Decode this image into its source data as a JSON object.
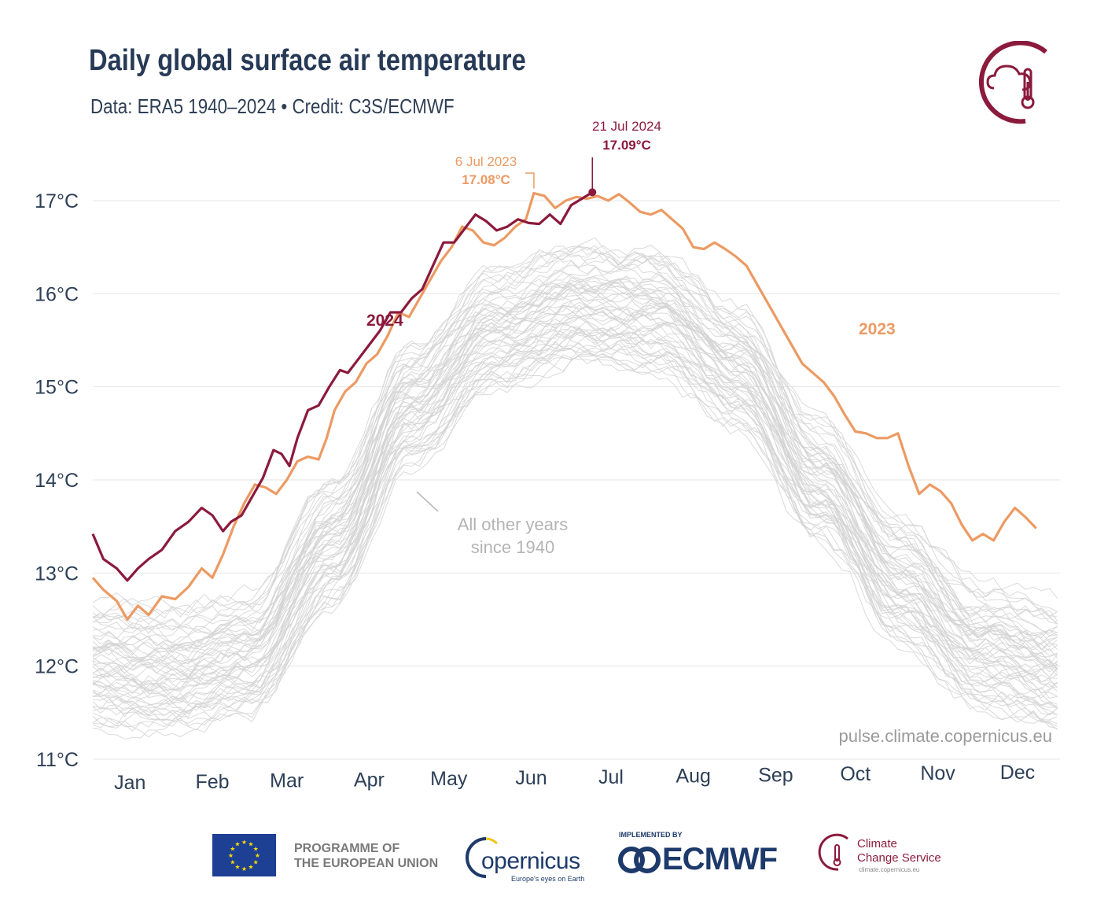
{
  "header": {
    "title": "Daily global surface air temperature",
    "subtitle": "Data: ERA5 1940–2024 • Credit: C3S/ECMWF"
  },
  "colors": {
    "y2024": "#8b1a3d",
    "y2023": "#ec9a63",
    "other_years": "#d3d3d3",
    "grid": "#e6e6e6",
    "text": "#263a56"
  },
  "chart_data": {
    "type": "line",
    "title": "Daily global surface air temperature",
    "ylim": [
      11,
      17
    ],
    "y_ticks": [
      "11°C",
      "12°C",
      "13°C",
      "14°C",
      "15°C",
      "16°C",
      "17°C"
    ],
    "x_ticks": [
      "Jan",
      "Feb",
      "Mar",
      "Apr",
      "May",
      "Jun",
      "Jul",
      "Aug",
      "Sep",
      "Oct",
      "Nov",
      "Dec"
    ],
    "x_unit": "day of year",
    "grid": true,
    "series": [
      {
        "name": "2024",
        "points": [
          [
            1,
            13.42
          ],
          [
            5,
            13.15
          ],
          [
            10,
            13.05
          ],
          [
            14,
            12.92
          ],
          [
            18,
            13.05
          ],
          [
            22,
            13.15
          ],
          [
            27,
            13.25
          ],
          [
            32,
            13.45
          ],
          [
            37,
            13.55
          ],
          [
            42,
            13.7
          ],
          [
            46,
            13.62
          ],
          [
            50,
            13.45
          ],
          [
            53,
            13.55
          ],
          [
            57,
            13.62
          ],
          [
            61,
            13.82
          ],
          [
            65,
            14.02
          ],
          [
            69,
            14.32
          ],
          [
            72,
            14.28
          ],
          [
            75,
            14.15
          ],
          [
            78,
            14.45
          ],
          [
            82,
            14.75
          ],
          [
            86,
            14.8
          ],
          [
            90,
            15.0
          ],
          [
            94,
            15.18
          ],
          [
            97,
            15.15
          ],
          [
            101,
            15.3
          ],
          [
            105,
            15.45
          ],
          [
            109,
            15.6
          ],
          [
            113,
            15.8
          ],
          [
            117,
            15.8
          ],
          [
            121,
            15.95
          ],
          [
            125,
            16.05
          ],
          [
            129,
            16.3
          ],
          [
            133,
            16.55
          ],
          [
            137,
            16.55
          ],
          [
            141,
            16.7
          ],
          [
            145,
            16.85
          ],
          [
            149,
            16.78
          ],
          [
            153,
            16.68
          ],
          [
            157,
            16.72
          ],
          [
            161,
            16.8
          ],
          [
            165,
            16.76
          ],
          [
            169,
            16.75
          ],
          [
            173,
            16.85
          ],
          [
            177,
            16.75
          ],
          [
            181,
            16.95
          ],
          [
            185,
            17.02
          ],
          [
            189,
            17.09
          ]
        ]
      },
      {
        "name": "2023",
        "points": [
          [
            1,
            12.95
          ],
          [
            5,
            12.82
          ],
          [
            10,
            12.7
          ],
          [
            14,
            12.5
          ],
          [
            18,
            12.65
          ],
          [
            22,
            12.55
          ],
          [
            27,
            12.75
          ],
          [
            32,
            12.72
          ],
          [
            37,
            12.85
          ],
          [
            42,
            13.05
          ],
          [
            46,
            12.95
          ],
          [
            50,
            13.2
          ],
          [
            54,
            13.5
          ],
          [
            58,
            13.75
          ],
          [
            62,
            13.95
          ],
          [
            66,
            13.92
          ],
          [
            70,
            13.85
          ],
          [
            74,
            14.0
          ],
          [
            78,
            14.2
          ],
          [
            82,
            14.25
          ],
          [
            86,
            14.22
          ],
          [
            89,
            14.45
          ],
          [
            92,
            14.75
          ],
          [
            96,
            14.95
          ],
          [
            100,
            15.05
          ],
          [
            104,
            15.25
          ],
          [
            108,
            15.35
          ],
          [
            112,
            15.55
          ],
          [
            116,
            15.8
          ],
          [
            120,
            15.75
          ],
          [
            124,
            15.95
          ],
          [
            128,
            16.15
          ],
          [
            132,
            16.35
          ],
          [
            136,
            16.5
          ],
          [
            140,
            16.72
          ],
          [
            144,
            16.68
          ],
          [
            148,
            16.55
          ],
          [
            152,
            16.52
          ],
          [
            156,
            16.6
          ],
          [
            160,
            16.72
          ],
          [
            164,
            16.8
          ],
          [
            167,
            17.08
          ],
          [
            171,
            17.05
          ],
          [
            175,
            16.92
          ],
          [
            179,
            17.0
          ],
          [
            183,
            17.04
          ],
          [
            187,
            17.02
          ],
          [
            191,
            17.05
          ],
          [
            195,
            17.0
          ],
          [
            199,
            17.07
          ],
          [
            203,
            16.98
          ],
          [
            207,
            16.88
          ],
          [
            211,
            16.85
          ],
          [
            215,
            16.9
          ],
          [
            219,
            16.8
          ],
          [
            223,
            16.7
          ],
          [
            227,
            16.5
          ],
          [
            231,
            16.48
          ],
          [
            235,
            16.55
          ],
          [
            239,
            16.48
          ],
          [
            243,
            16.4
          ],
          [
            247,
            16.3
          ],
          [
            252,
            16.05
          ],
          [
            256,
            15.85
          ],
          [
            260,
            15.65
          ],
          [
            264,
            15.45
          ],
          [
            268,
            15.25
          ],
          [
            272,
            15.15
          ],
          [
            276,
            15.05
          ],
          [
            280,
            14.9
          ],
          [
            284,
            14.7
          ],
          [
            288,
            14.52
          ],
          [
            292,
            14.5
          ],
          [
            296,
            14.45
          ],
          [
            300,
            14.45
          ],
          [
            304,
            14.5
          ],
          [
            308,
            14.15
          ],
          [
            312,
            13.85
          ],
          [
            316,
            13.95
          ],
          [
            320,
            13.88
          ],
          [
            324,
            13.75
          ],
          [
            328,
            13.52
          ],
          [
            332,
            13.35
          ],
          [
            336,
            13.42
          ],
          [
            340,
            13.35
          ],
          [
            344,
            13.55
          ],
          [
            348,
            13.7
          ],
          [
            352,
            13.6
          ],
          [
            356,
            13.48
          ]
        ]
      }
    ],
    "background_series_label": "All other years since 1940",
    "background_band": {
      "mean_points": [
        [
          1,
          12.0
        ],
        [
          32,
          11.95
        ],
        [
          60,
          12.1
        ],
        [
          91,
          13.3
        ],
        [
          121,
          14.8
        ],
        [
          152,
          15.6
        ],
        [
          182,
          15.85
        ],
        [
          213,
          15.8
        ],
        [
          244,
          15.2
        ],
        [
          274,
          14.0
        ],
        [
          305,
          12.9
        ],
        [
          335,
          12.2
        ],
        [
          365,
          12.0
        ]
      ],
      "spread": 0.55
    },
    "annotations": [
      {
        "date": "21 Jul 2024",
        "value": "17.09°C",
        "series": "2024"
      },
      {
        "date": "6 Jul 2023",
        "value": "17.08°C",
        "series": "2023"
      }
    ],
    "series_labels": [
      "2024",
      "2023"
    ],
    "source_note": "pulse.climate.copernicus.eu"
  },
  "footer": {
    "eu_text": "PROGRAMME OF\nTHE EUROPEAN UNION",
    "copernicus_word": "opernicus",
    "copernicus_tag": "Europe's eyes on Earth",
    "ecmwf_implemented": "IMPLEMENTED BY",
    "ecmwf_word": "ECMWF",
    "c3s_text": "Climate\nChange Service",
    "c3s_url": "climate.copernicus.eu"
  }
}
